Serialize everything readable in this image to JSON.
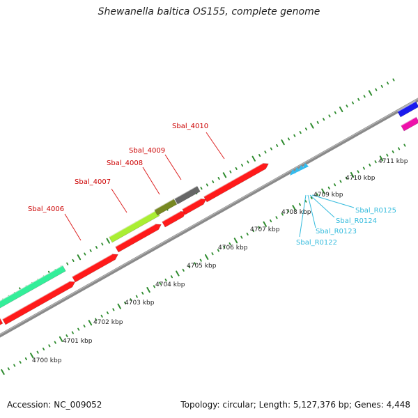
{
  "title": "Shewanella baltica OS155, complete genome",
  "footer": {
    "accession": "Accession: NC_009052",
    "summary": "Topology: circular; Length: 5,127,376 bp; Genes: 4,448"
  },
  "colors": {
    "backbone": "#8a8a8a",
    "tick": "#2e8b2e",
    "forward_label": "#cc0000",
    "rna_label": "#33bbdd",
    "ruler_text": "#222222"
  },
  "ruler_labels": [
    {
      "text": "4700 kbp"
    },
    {
      "text": "4701 kbp"
    },
    {
      "text": "4702 kbp"
    },
    {
      "text": "4703 kbp"
    },
    {
      "text": "4704 kbp"
    },
    {
      "text": "4705 kbp"
    },
    {
      "text": "4706 kbp"
    },
    {
      "text": "4707 kbp"
    },
    {
      "text": "4708 kbp"
    },
    {
      "text": "4709 kbp"
    },
    {
      "text": "4710 kbp"
    },
    {
      "text": "4711 kbp"
    }
  ],
  "gene_labels": [
    {
      "text": "Sbal_4006"
    },
    {
      "text": "Sbal_4007"
    },
    {
      "text": "Sbal_4008"
    },
    {
      "text": "Sbal_4009"
    },
    {
      "text": "Sbal_4010"
    }
  ],
  "rna_labels": [
    {
      "text": "Sbal_R0122"
    },
    {
      "text": "Sbal_R0123"
    },
    {
      "text": "Sbal_R0124"
    },
    {
      "text": "Sbal_R0125"
    }
  ],
  "feature_colors": {
    "red": "#ff1a1a",
    "teal": "#33ee99",
    "lime": "#aaee33",
    "olive": "#778822",
    "gray": "#666666",
    "blue": "#1a1aee",
    "magenta": "#ee11aa",
    "rna": "#33bbee"
  }
}
